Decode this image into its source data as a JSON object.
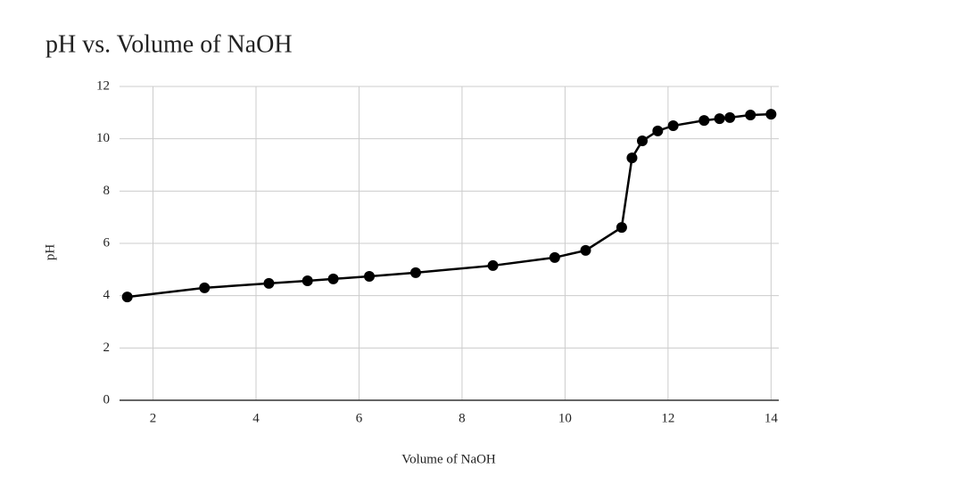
{
  "chart_data": {
    "type": "line",
    "title": "pH vs. Volume of NaOH",
    "x_label": "Volume of NaOH",
    "y_label": "pH",
    "x": [
      1.5,
      3.0,
      4.25,
      5.0,
      5.5,
      6.2,
      7.1,
      8.6,
      9.8,
      10.4,
      11.1,
      11.3,
      11.5,
      11.8,
      12.1,
      12.7,
      13.0,
      13.2,
      13.6,
      14.0
    ],
    "series": [
      {
        "name": "pH",
        "color": "#000000",
        "values": [
          3.95,
          4.3,
          4.47,
          4.57,
          4.64,
          4.74,
          4.88,
          5.15,
          5.46,
          5.73,
          6.61,
          9.27,
          9.92,
          10.3,
          10.5,
          10.7,
          10.77,
          10.81,
          10.91,
          10.94
        ]
      }
    ],
    "xlim": [
      1.35,
      14.15
    ],
    "ylim": [
      0,
      12
    ],
    "xticks": [
      2,
      4,
      6,
      8,
      10,
      12,
      14
    ],
    "yticks": [
      0,
      2,
      4,
      6,
      8,
      10,
      12
    ],
    "grid": true
  }
}
